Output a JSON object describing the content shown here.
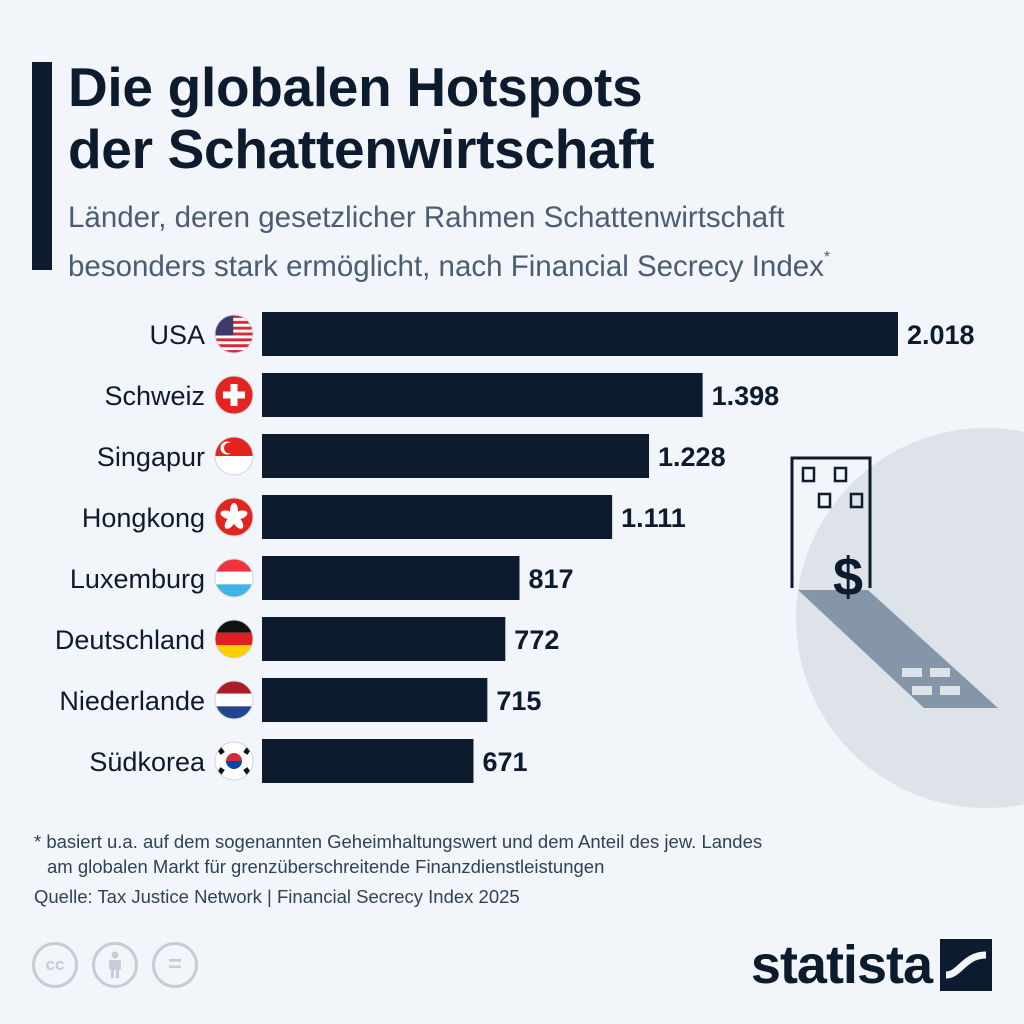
{
  "title_lines": [
    "Die globalen Hotspots",
    "der Schattenwirtschaft"
  ],
  "subtitle_lines": [
    "Länder, deren gesetzlicher Rahmen Schattenwirtschaft",
    "besonders stark ermöglicht, nach Financial Secrecy Index"
  ],
  "subtitle_marker": "*",
  "footnote": {
    "line1": "* basiert u.a. auf dem sogenannten Geheimhaltungswert und dem Anteil des jew. Landes",
    "line2": "am globalen Markt für grenzüberschreitende Finanzdienstleistungen"
  },
  "source": "Quelle: Tax Justice Network | Financial Secrecy Index 2025",
  "brand": "statista",
  "license_icons": [
    "cc",
    "by",
    "nd"
  ],
  "license_labels": {
    "cc": "cc",
    "nd": "="
  },
  "colors": {
    "bar": "#0d1b2e",
    "background": "#f2f5f9",
    "illustration_circle": "#dde3e9",
    "shadow": "#8496a8"
  },
  "chart_data": {
    "type": "bar",
    "orientation": "horizontal",
    "categories": [
      "USA",
      "Schweiz",
      "Singapur",
      "Hongkong",
      "Luxemburg",
      "Deutschland",
      "Niederlande",
      "Südkorea"
    ],
    "values": [
      2018,
      1398,
      1228,
      1111,
      817,
      772,
      715,
      671
    ],
    "value_labels": [
      "2.018",
      "1.398",
      "1.228",
      "1.111",
      "817",
      "772",
      "715",
      "671"
    ],
    "flags": [
      "us-flag-icon",
      "switzerland-flag-icon",
      "singapore-flag-icon",
      "hongkong-flag-icon",
      "luxembourg-flag-icon",
      "germany-flag-icon",
      "netherlands-flag-icon",
      "southkorea-flag-icon"
    ],
    "grid": false,
    "legend": "none"
  }
}
